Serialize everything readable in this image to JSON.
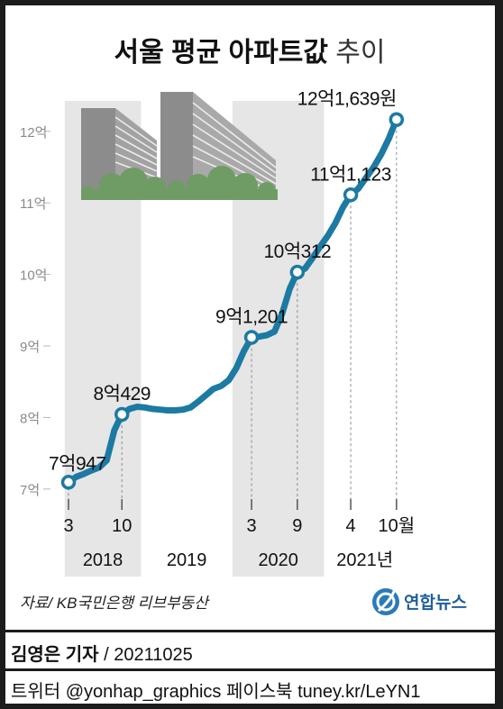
{
  "chart_data": {
    "type": "line",
    "title_bold": "서울 평균 아파트값",
    "title_light": " 추이",
    "y_ticks": [
      {
        "value": 7,
        "label": "7억"
      },
      {
        "value": 8,
        "label": "8억"
      },
      {
        "value": 9,
        "label": "9억"
      },
      {
        "value": 10,
        "label": "10억"
      },
      {
        "value": 11,
        "label": "11억"
      },
      {
        "value": 12,
        "label": "12억"
      }
    ],
    "ylim": [
      6.96,
      12.4
    ],
    "x_domain": [
      0,
      52
    ],
    "x_ticks": [
      {
        "x": 0,
        "label": "3"
      },
      {
        "x": 7,
        "label": "10"
      },
      {
        "x": 24,
        "label": "3"
      },
      {
        "x": 30,
        "label": "9"
      },
      {
        "x": 37,
        "label": "4"
      },
      {
        "x": 43,
        "label": "10월"
      }
    ],
    "years": [
      {
        "label": "2018",
        "from": -0.5,
        "to": 9.5,
        "shaded": true
      },
      {
        "label": "2019",
        "from": 9.5,
        "to": 21.5,
        "shaded": false
      },
      {
        "label": "2020",
        "from": 21.5,
        "to": 33.5,
        "shaded": true
      },
      {
        "label": "2021년",
        "from": 33.5,
        "to": 44.2,
        "shaded": false
      }
    ],
    "series": [
      {
        "x": [
          0,
          1,
          2,
          3,
          4,
          5,
          6,
          7,
          8,
          9,
          10,
          11,
          12,
          13,
          14,
          15,
          16,
          17,
          18,
          19,
          20,
          21,
          22,
          23,
          24,
          25,
          26,
          27,
          28,
          29,
          30,
          31,
          32,
          33,
          34,
          35,
          36,
          37,
          38,
          39,
          40,
          41,
          42,
          43
        ],
        "y": [
          7.0947,
          7.17,
          7.21,
          7.26,
          7.3,
          7.4,
          7.82,
          8.0429,
          8.12,
          8.15,
          8.14,
          8.12,
          8.11,
          8.1,
          8.1,
          8.11,
          8.14,
          8.22,
          8.31,
          8.4,
          8.44,
          8.52,
          8.69,
          8.93,
          9.1201,
          9.13,
          9.15,
          9.2,
          9.45,
          9.8,
          10.0312,
          10.08,
          10.23,
          10.39,
          10.54,
          10.72,
          10.94,
          11.1123,
          11.2,
          11.35,
          11.5,
          11.68,
          11.9,
          12.1639
        ]
      }
    ],
    "markers": [
      {
        "x": 0,
        "y": 7.0947,
        "label": "7억947",
        "label_pos": "above-left"
      },
      {
        "x": 7,
        "y": 8.0429,
        "label": "8억429",
        "label_pos": "above"
      },
      {
        "x": 24,
        "y": 9.1201,
        "label": "9억1,201",
        "label_pos": "above"
      },
      {
        "x": 30,
        "y": 10.0312,
        "label": "10억312",
        "label_pos": "above"
      },
      {
        "x": 37,
        "y": 11.1123,
        "label": "11억1,123",
        "label_pos": "above"
      },
      {
        "x": 43,
        "y": 12.1639,
        "label": "12억1,639원",
        "label_pos": "above"
      }
    ],
    "source": "자료/ KB국민은행 리브부동산",
    "logo_text": "연합뉴스",
    "colors": {
      "line": "#1c7aa3",
      "shade": "#e6e6e6",
      "guide": "#8c8c8c",
      "building": "#8e8e8e",
      "trees": "#6f9c64"
    }
  },
  "footer": {
    "reporter": "김영은 기자",
    "date": " / 20211025",
    "social": "트위터 @yonhap_graphics  페이스북 tuney.kr/LeYN1"
  }
}
